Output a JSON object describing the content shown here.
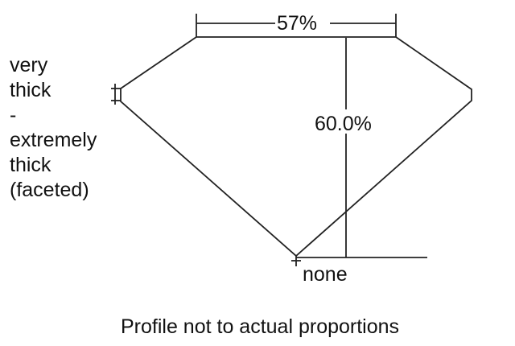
{
  "girdle_label": [
    "very",
    "thick",
    "-",
    "extremely",
    "thick",
    "(faceted)"
  ],
  "table_label": "57%",
  "depth_label": "60.0%",
  "culet_label": "none",
  "caption": "Profile not to actual proportions",
  "line_color": "#222222"
}
